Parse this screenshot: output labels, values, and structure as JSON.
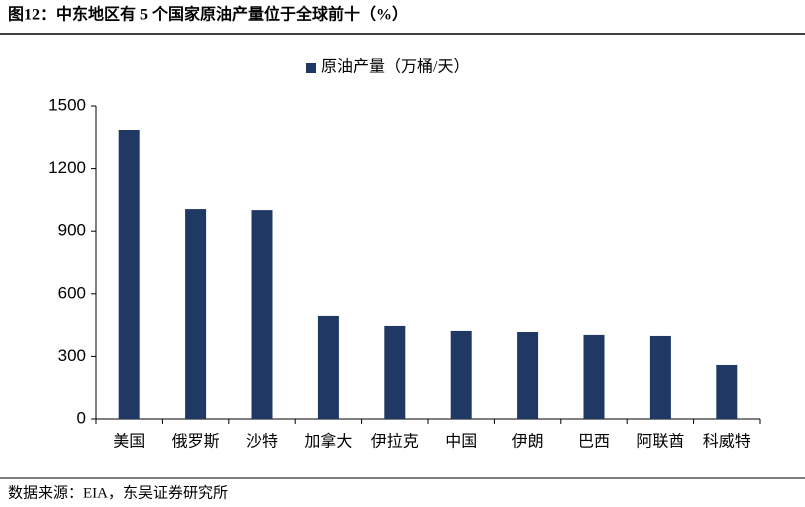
{
  "chart_data": {
    "type": "bar",
    "title": "图12：中东地区有 5 个国家原油产量位于全球前十（%）",
    "categories": [
      "美国",
      "俄罗斯",
      "沙特",
      "加拿大",
      "伊拉克",
      "中国",
      "伊朗",
      "巴西",
      "阿联酋",
      "科威特"
    ],
    "series": [
      {
        "name": "原油产量（万桶/天）",
        "color": "#203864",
        "values": [
          1385,
          1006,
          1001,
          494,
          446,
          422,
          417,
          403,
          398,
          259
        ]
      }
    ],
    "ylim": [
      0,
      1500
    ],
    "yticks": [
      0,
      300,
      600,
      900,
      1200,
      1500
    ],
    "grid": false,
    "legend": "top"
  },
  "source": "数据来源：EIA，东吴证券研究所"
}
